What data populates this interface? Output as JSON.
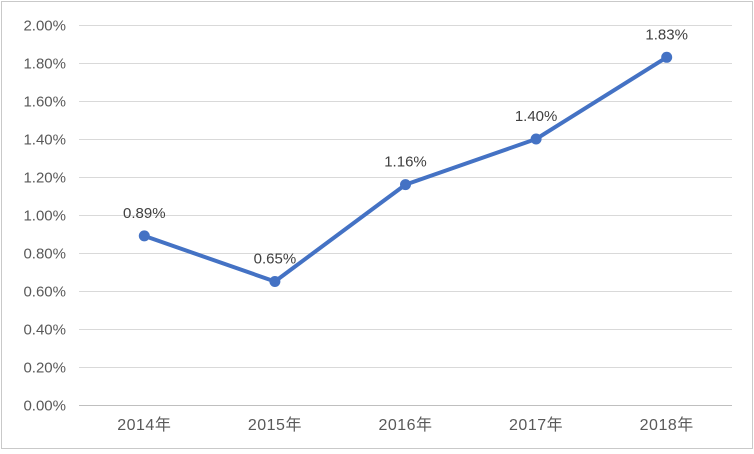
{
  "chart_data": {
    "type": "line",
    "title": "",
    "xlabel": "",
    "ylabel": "",
    "categories": [
      "2014年",
      "2015年",
      "2016年",
      "2017年",
      "2018年"
    ],
    "series": [
      {
        "name": "percentage-series",
        "values": [
          0.89,
          0.65,
          1.16,
          1.4,
          1.83
        ],
        "data_labels": [
          "0.89%",
          "0.65%",
          "1.16%",
          "1.40%",
          "1.83%"
        ],
        "color": "#4472C4",
        "marker": "circle",
        "line_width": 4,
        "marker_radius": 5.5
      }
    ],
    "ylim": [
      0,
      2.0
    ],
    "y_tick_step": 0.2,
    "y_tick_labels": [
      "0.00%",
      "0.20%",
      "0.40%",
      "0.60%",
      "0.80%",
      "1.00%",
      "1.20%",
      "1.40%",
      "1.60%",
      "1.80%",
      "2.00%"
    ],
    "grid": true,
    "legend": "none",
    "colors": {
      "gridline": "#D9D9D9",
      "axis_line": "#BFBFBF",
      "axis_text": "#595959",
      "data_label_text": "#404040",
      "background": "#FFFFFF",
      "border": "#C9C9C9"
    }
  }
}
